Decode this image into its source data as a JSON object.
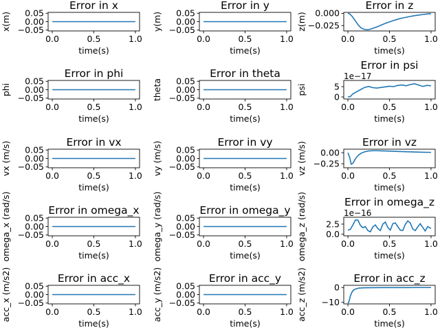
{
  "chart_data": [
    {
      "type": "line",
      "title": "Error in x",
      "xlabel": "time(s)",
      "ylabel": "x(m)",
      "xlim": [
        -0.05,
        1.05
      ],
      "ylim": [
        -0.055,
        0.055
      ],
      "xticks": [
        0,
        0.5,
        1
      ],
      "xtick_labels": [
        "0.0",
        "0.5",
        "1.0"
      ],
      "yticks": [
        0.05,
        0,
        -0.05
      ],
      "ytick_labels": [
        "0.05",
        "0.00",
        "−0.05"
      ],
      "offset_text": "",
      "x": [
        0,
        1
      ],
      "y": [
        0,
        0
      ]
    },
    {
      "type": "line",
      "title": "Error in y",
      "xlabel": "time(s)",
      "ylabel": "y(m)",
      "xlim": [
        -0.05,
        1.05
      ],
      "ylim": [
        -0.055,
        0.055
      ],
      "xticks": [
        0,
        0.5,
        1
      ],
      "xtick_labels": [
        "0.0",
        "0.5",
        "1.0"
      ],
      "yticks": [
        0.05,
        0,
        -0.05
      ],
      "ytick_labels": [
        "0.05",
        "0.00",
        "−0.05"
      ],
      "offset_text": "",
      "x": [
        0,
        1
      ],
      "y": [
        0,
        0
      ]
    },
    {
      "type": "line",
      "title": "Error in z",
      "xlabel": "time(s)",
      "ylabel": "z(m)",
      "xlim": [
        -0.05,
        1.05
      ],
      "ylim": [
        -0.036,
        0.002
      ],
      "xticks": [
        0,
        0.5,
        1
      ],
      "xtick_labels": [
        "0.0",
        "0.5",
        "1.0"
      ],
      "yticks": [
        0,
        -0.025
      ],
      "ytick_labels": [
        "0.000",
        "−0.025"
      ],
      "offset_text": "",
      "x": [
        0,
        0.02,
        0.05,
        0.08,
        0.1,
        0.13,
        0.16,
        0.2,
        0.24,
        0.28,
        0.32,
        0.36,
        0.4,
        0.45,
        0.5,
        0.55,
        0.6,
        0.65,
        0.7,
        0.75,
        0.8,
        0.85,
        0.9,
        0.95,
        1.0
      ],
      "y": [
        0,
        -0.001,
        -0.006,
        -0.013,
        -0.018,
        -0.025,
        -0.03,
        -0.033,
        -0.0335,
        -0.032,
        -0.0295,
        -0.027,
        -0.024,
        -0.0205,
        -0.0175,
        -0.0145,
        -0.012,
        -0.0098,
        -0.008,
        -0.0063,
        -0.0048,
        -0.0035,
        -0.0024,
        -0.0014,
        -0.0006
      ]
    },
    {
      "type": "line",
      "title": "Error in phi",
      "xlabel": "time(s)",
      "ylabel": "phi",
      "xlim": [
        -0.05,
        1.05
      ],
      "ylim": [
        -0.055,
        0.055
      ],
      "xticks": [
        0,
        0.5,
        1
      ],
      "xtick_labels": [
        "0.0",
        "0.5",
        "1.0"
      ],
      "yticks": [
        0.05,
        0,
        -0.05
      ],
      "ytick_labels": [
        "0.05",
        "0.00",
        "−0.05"
      ],
      "offset_text": "",
      "x": [
        0,
        1
      ],
      "y": [
        0,
        0
      ]
    },
    {
      "type": "line",
      "title": "Error in theta",
      "xlabel": "time(s)",
      "ylabel": "theta",
      "xlim": [
        -0.05,
        1.05
      ],
      "ylim": [
        -0.055,
        0.055
      ],
      "xticks": [
        0,
        0.5,
        1
      ],
      "xtick_labels": [
        "0.0",
        "0.5",
        "1.0"
      ],
      "yticks": [
        0.05,
        0,
        -0.05
      ],
      "ytick_labels": [
        "0.05",
        "0.00",
        "−0.05"
      ],
      "offset_text": "",
      "x": [
        0,
        1
      ],
      "y": [
        0,
        0
      ]
    },
    {
      "type": "line",
      "title": "Error in psi",
      "xlabel": "time(s)",
      "ylabel": "psi",
      "xlim": [
        -0.05,
        1.05
      ],
      "ylim": [
        -1,
        8
      ],
      "xticks": [
        0,
        0.5,
        1
      ],
      "xtick_labels": [
        "0.0",
        "0.5",
        "1.0"
      ],
      "yticks": [
        5,
        0
      ],
      "ytick_labels": [
        "5",
        "0"
      ],
      "offset_text": "1e−17",
      "x": [
        0,
        0.03,
        0.06,
        0.1,
        0.15,
        0.2,
        0.25,
        0.3,
        0.35,
        0.4,
        0.45,
        0.5,
        0.55,
        0.6,
        0.65,
        0.7,
        0.75,
        0.8,
        0.85,
        0.9,
        0.95,
        1.0
      ],
      "y": [
        0,
        0.2,
        1.5,
        2.4,
        3.5,
        4.6,
        5.1,
        4.5,
        4.3,
        4.6,
        4.9,
        5.2,
        5.0,
        5.6,
        5.8,
        5.4,
        6.0,
        6.4,
        5.8,
        5.1,
        5.6,
        5.4
      ]
    },
    {
      "type": "line",
      "title": "Error in vx",
      "xlabel": "time(s)",
      "ylabel": "vx (m/s)",
      "xlim": [
        -0.05,
        1.05
      ],
      "ylim": [
        -0.055,
        0.055
      ],
      "xticks": [
        0,
        0.5,
        1
      ],
      "xtick_labels": [
        "0.0",
        "0.5",
        "1.0"
      ],
      "yticks": [
        0.05,
        0,
        -0.05
      ],
      "ytick_labels": [
        "0.05",
        "0.00",
        "−0.05"
      ],
      "offset_text": "",
      "x": [
        0,
        1
      ],
      "y": [
        0,
        0
      ]
    },
    {
      "type": "line",
      "title": "Error in vy",
      "xlabel": "time(s)",
      "ylabel": "vy (m/s)",
      "xlim": [
        -0.05,
        1.05
      ],
      "ylim": [
        -0.055,
        0.055
      ],
      "xticks": [
        0,
        0.5,
        1
      ],
      "xtick_labels": [
        "0.0",
        "0.5",
        "1.0"
      ],
      "yticks": [
        0.05,
        0,
        -0.05
      ],
      "ytick_labels": [
        "0.05",
        "0.00",
        "−0.05"
      ],
      "offset_text": "",
      "x": [
        0,
        1
      ],
      "y": [
        0,
        0
      ]
    },
    {
      "type": "line",
      "title": "Error in vz",
      "xlabel": "time(s)",
      "ylabel": "vz (m/s)",
      "xlim": [
        -0.05,
        1.05
      ],
      "ylim": [
        -0.34,
        0.08
      ],
      "xticks": [
        0,
        0.5,
        1
      ],
      "xtick_labels": [
        "0.0",
        "0.5",
        "1.0"
      ],
      "yticks": [
        0,
        -0.25
      ],
      "ytick_labels": [
        "0.00",
        "−0.25"
      ],
      "offset_text": "",
      "x": [
        0,
        0.02,
        0.04,
        0.06,
        0.08,
        0.1,
        0.13,
        0.16,
        0.2,
        0.25,
        0.3,
        0.35,
        0.4,
        0.45,
        0.5,
        0.55,
        0.6,
        0.7,
        0.8,
        0.9,
        1.0
      ],
      "y": [
        0,
        -0.1,
        -0.26,
        -0.24,
        -0.17,
        -0.11,
        -0.05,
        -0.01,
        0.02,
        0.04,
        0.045,
        0.045,
        0.042,
        0.04,
        0.036,
        0.032,
        0.028,
        0.022,
        0.016,
        0.011,
        0.008
      ]
    },
    {
      "type": "line",
      "title": "Error in omega_x",
      "xlabel": "time(s)",
      "ylabel": "omega_x (rad/s)",
      "xlim": [
        -0.05,
        1.05
      ],
      "ylim": [
        -0.055,
        0.055
      ],
      "xticks": [
        0,
        0.5,
        1
      ],
      "xtick_labels": [
        "0.0",
        "0.5",
        "1.0"
      ],
      "yticks": [
        0.05,
        0,
        -0.05
      ],
      "ytick_labels": [
        "0.05",
        "0.00",
        "−0.05"
      ],
      "offset_text": "",
      "x": [
        0,
        1
      ],
      "y": [
        0,
        0
      ]
    },
    {
      "type": "line",
      "title": "Error in omega_y",
      "xlabel": "time(s)",
      "ylabel": "omega_y (rad/s)",
      "xlim": [
        -0.05,
        1.05
      ],
      "ylim": [
        -0.055,
        0.055
      ],
      "xticks": [
        0,
        0.5,
        1
      ],
      "xtick_labels": [
        "0.0",
        "0.5",
        "1.0"
      ],
      "yticks": [
        0.05,
        0,
        -0.05
      ],
      "ytick_labels": [
        "0.05",
        "0.00",
        "−0.05"
      ],
      "offset_text": "",
      "x": [
        0,
        1
      ],
      "y": [
        0,
        0
      ]
    },
    {
      "type": "line",
      "title": "Error in omega_z",
      "xlabel": "time(s)",
      "ylabel": "omega_z (rad/s)",
      "xlim": [
        -0.05,
        1.05
      ],
      "ylim": [
        -0.4,
        4.2
      ],
      "xticks": [
        0,
        0.5,
        1
      ],
      "xtick_labels": [
        "0.0",
        "0.5",
        "1.0"
      ],
      "yticks": [
        2.5,
        0
      ],
      "ytick_labels": [
        "2.5",
        "0.0"
      ],
      "offset_text": "1e−16",
      "x": [
        0,
        0.03,
        0.06,
        0.09,
        0.12,
        0.15,
        0.18,
        0.21,
        0.24,
        0.27,
        0.3,
        0.33,
        0.36,
        0.39,
        0.42,
        0.45,
        0.48,
        0.51,
        0.54,
        0.57,
        0.6,
        0.63,
        0.66,
        0.69,
        0.72,
        0.75,
        0.78,
        0.81,
        0.84,
        0.87,
        0.9,
        0.93,
        0.96,
        1.0
      ],
      "y": [
        1.0,
        1.2,
        2.3,
        3.5,
        3.5,
        2.2,
        1.6,
        1.9,
        0.9,
        0.6,
        1.8,
        2.3,
        1.4,
        0.9,
        2.5,
        3.0,
        1.7,
        1.0,
        2.6,
        2.8,
        1.9,
        1.0,
        0.9,
        2.4,
        3.3,
        2.8,
        1.3,
        0.9,
        1.8,
        2.6,
        1.7,
        0.8,
        1.9,
        1.4
      ]
    },
    {
      "type": "line",
      "title": "Error in acc_x",
      "xlabel": "time(s)",
      "ylabel": "acc_x (m/s2)",
      "xlim": [
        -0.05,
        1.05
      ],
      "ylim": [
        -0.055,
        0.055
      ],
      "xticks": [
        0,
        0.5,
        1
      ],
      "xtick_labels": [
        "0.0",
        "0.5",
        "1.0"
      ],
      "yticks": [
        0.05,
        0,
        -0.05
      ],
      "ytick_labels": [
        "0.05",
        "0.00",
        "−0.05"
      ],
      "offset_text": "",
      "x": [
        0,
        1
      ],
      "y": [
        0,
        0
      ]
    },
    {
      "type": "line",
      "title": "Error in acc_y",
      "xlabel": "time(s)",
      "ylabel": "acc_y (m/s2)",
      "xlim": [
        -0.05,
        1.05
      ],
      "ylim": [
        -0.055,
        0.055
      ],
      "xticks": [
        0,
        0.5,
        1
      ],
      "xtick_labels": [
        "0.0",
        "0.5",
        "1.0"
      ],
      "yticks": [
        0.05,
        0,
        -0.05
      ],
      "ytick_labels": [
        "0.05",
        "0.00",
        "−0.05"
      ],
      "offset_text": "",
      "x": [
        0,
        1
      ],
      "y": [
        0,
        0
      ]
    },
    {
      "type": "line",
      "title": "Error in acc_z",
      "xlabel": "time(s)",
      "ylabel": "acc_z (m/s2)",
      "xlim": [
        -0.05,
        1.05
      ],
      "ylim": [
        -11,
        1.5
      ],
      "xticks": [
        0,
        0.5,
        1
      ],
      "xtick_labels": [
        "0.0",
        "0.5",
        "1.0"
      ],
      "yticks": [
        0,
        -10
      ],
      "ytick_labels": [
        "0",
        "−10"
      ],
      "offset_text": "",
      "x": [
        0,
        0.01,
        0.02,
        0.03,
        0.05,
        0.07,
        0.1,
        0.13,
        0.16,
        0.2,
        0.3,
        0.4,
        0.5,
        0.6,
        0.7,
        0.8,
        0.9,
        1.0
      ],
      "y": [
        -10.5,
        -9.8,
        -8.0,
        -5.5,
        -3.0,
        -1.6,
        -0.8,
        -0.4,
        -0.25,
        -0.15,
        -0.08,
        -0.05,
        -0.03,
        -0.02,
        -0.015,
        -0.01,
        -0.005,
        0
      ]
    }
  ]
}
